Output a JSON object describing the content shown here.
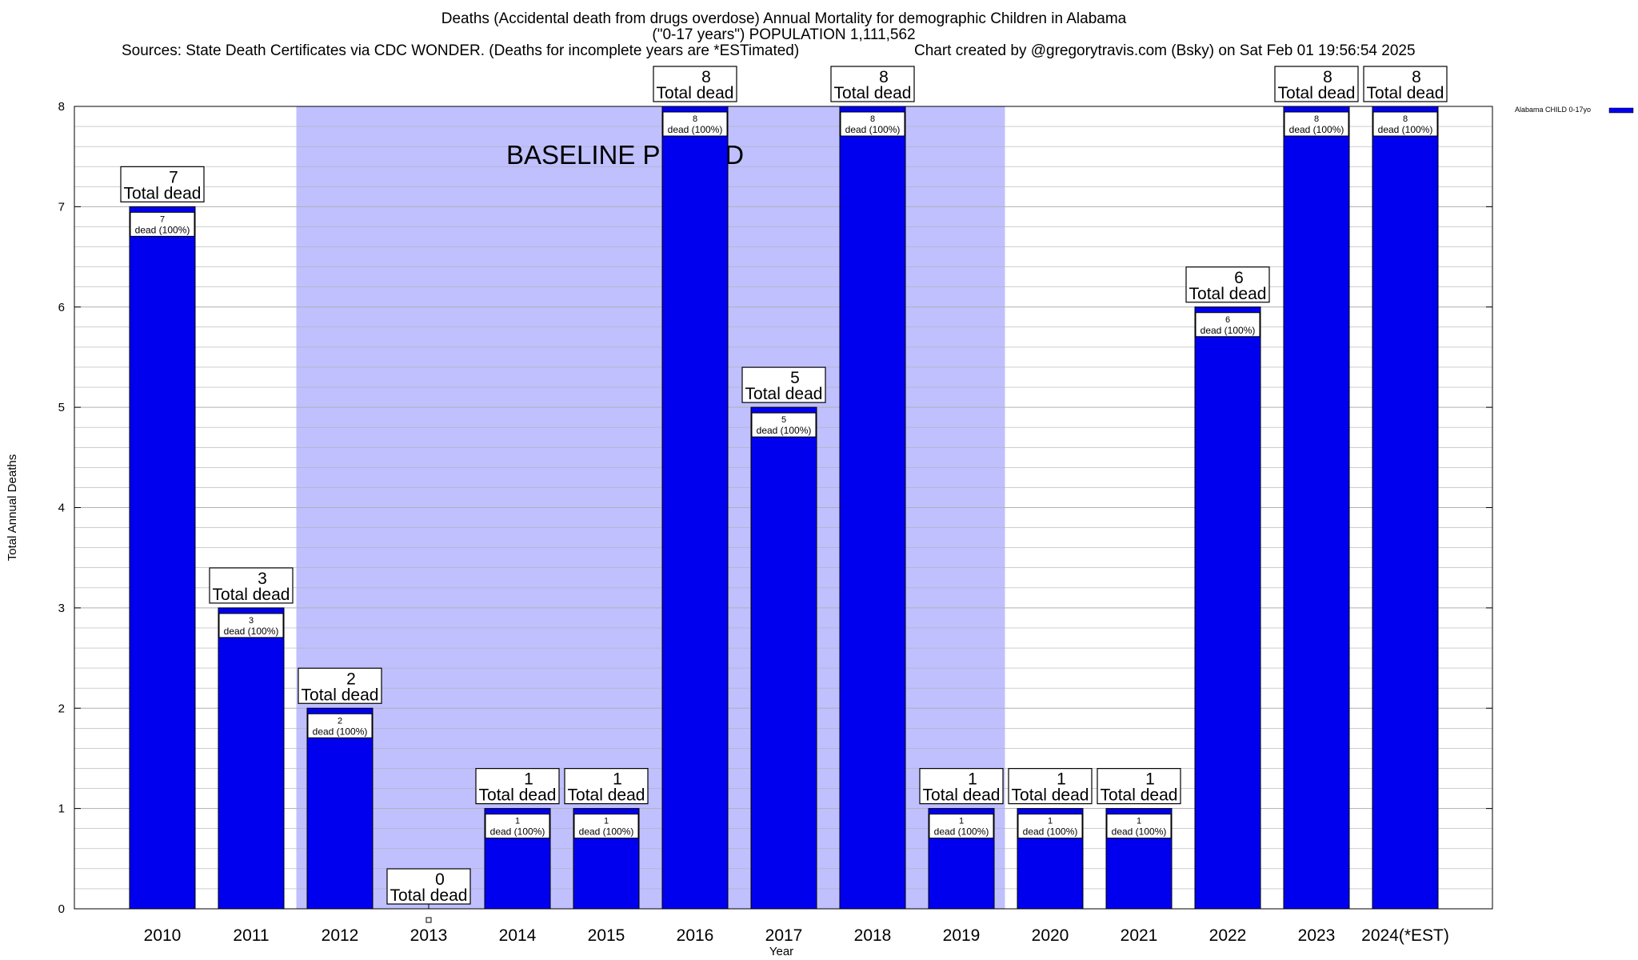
{
  "header": {
    "title_line1": "Deaths (Accidental death from drugs overdose) Annual Mortality for demographic Children in Alabama",
    "title_line2": "(\"0-17 years\") POPULATION 1,111,562",
    "sources": "Sources: State Death Certificates via CDC WONDER. (Deaths for incomplete years are *ESTimated)",
    "credit": "Chart created by @gregorytravis.com (Bsky) on Sat Feb 01 19:56:54 2025"
  },
  "colors": {
    "bar": "#0000ee",
    "baseline_band": "#c0c0ff",
    "grid": "#b0b0b0"
  },
  "chart_data": {
    "type": "bar",
    "xlabel": "Year",
    "ylabel": "Total Annual Deaths",
    "ylim": [
      0,
      8
    ],
    "y_ticks": [
      0,
      1,
      2,
      3,
      4,
      5,
      6,
      7,
      8
    ],
    "grid": true,
    "legend_position": "top-right",
    "categories": [
      "2010",
      "2011",
      "2012",
      "2013",
      "2014",
      "2015",
      "2016",
      "2017",
      "2018",
      "2019",
      "2020",
      "2021",
      "2022",
      "2023",
      "2024(*EST)"
    ],
    "series": [
      {
        "name": "Alabama CHILD 0-17yo",
        "values": [
          7,
          3,
          2,
          0,
          1,
          1,
          8,
          5,
          8,
          1,
          1,
          1,
          6,
          8,
          8
        ]
      }
    ],
    "total_label_text": "Total dead",
    "inner_label_text": "dead (100%)",
    "baseline_period": {
      "label": "BASELINE PERIOD",
      "start": "2012",
      "end": "2019"
    }
  }
}
